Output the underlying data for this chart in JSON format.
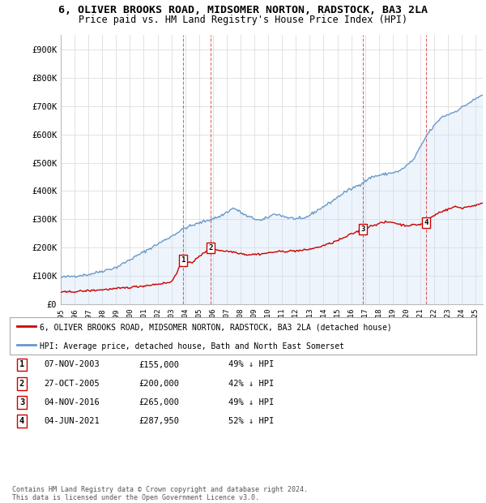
{
  "title": "6, OLIVER BROOKS ROAD, MIDSOMER NORTON, RADSTOCK, BA3 2LA",
  "subtitle": "Price paid vs. HM Land Registry's House Price Index (HPI)",
  "title_fontsize": 9.5,
  "subtitle_fontsize": 8.5,
  "ylabel_ticks": [
    "£0",
    "£100K",
    "£200K",
    "£300K",
    "£400K",
    "£500K",
    "£600K",
    "£700K",
    "£800K",
    "£900K"
  ],
  "ytick_values": [
    0,
    100000,
    200000,
    300000,
    400000,
    500000,
    600000,
    700000,
    800000,
    900000
  ],
  "ylim": [
    0,
    950000
  ],
  "xlim_start": 1995.0,
  "xlim_end": 2025.5,
  "sale_dates": [
    2003.85,
    2005.82,
    2016.85,
    2021.42
  ],
  "sale_prices": [
    155000,
    200000,
    265000,
    287950
  ],
  "sale_labels": [
    "1",
    "2",
    "3",
    "4"
  ],
  "sale_color": "#cc0000",
  "hpi_color": "#6699cc",
  "hpi_fill_color": "#cce0f5",
  "legend_address": "6, OLIVER BROOKS ROAD, MIDSOMER NORTON, RADSTOCK, BA3 2LA (detached house)",
  "legend_hpi": "HPI: Average price, detached house, Bath and North East Somerset",
  "table_rows": [
    [
      "1",
      "07-NOV-2003",
      "£155,000",
      "49% ↓ HPI"
    ],
    [
      "2",
      "27-OCT-2005",
      "£200,000",
      "42% ↓ HPI"
    ],
    [
      "3",
      "04-NOV-2016",
      "£265,000",
      "49% ↓ HPI"
    ],
    [
      "4",
      "04-JUN-2021",
      "£287,950",
      "52% ↓ HPI"
    ]
  ],
  "footer": "Contains HM Land Registry data © Crown copyright and database right 2024.\nThis data is licensed under the Open Government Licence v3.0.",
  "background_color": "#ffffff",
  "grid_color": "#dddddd",
  "xtick_years": [
    1995,
    1996,
    1997,
    1998,
    1999,
    2000,
    2001,
    2002,
    2003,
    2004,
    2005,
    2006,
    2007,
    2008,
    2009,
    2010,
    2011,
    2012,
    2013,
    2014,
    2015,
    2016,
    2017,
    2018,
    2019,
    2020,
    2021,
    2022,
    2023,
    2024,
    2025
  ]
}
